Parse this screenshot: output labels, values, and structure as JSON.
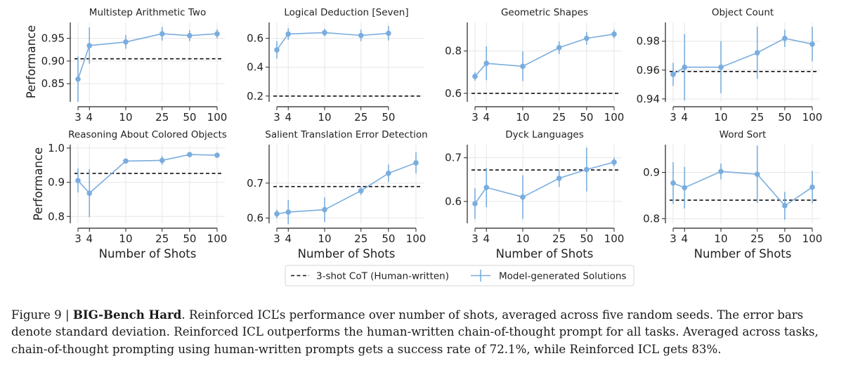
{
  "figure": {
    "y_label": "Performance",
    "x_label": "Number of Shots",
    "legend": {
      "baseline": "3-shot CoT (Human-written)",
      "model": "Model-generated Solutions"
    },
    "colors": {
      "series": "#7aadde",
      "baseline": "#111111",
      "grid": "#e6e6e6",
      "axis": "#222222"
    }
  },
  "caption": {
    "label": "Figure 9 | ",
    "title": "BIG-Bench Hard",
    "text": ". Reinforced ICL’s performance over number of shots, averaged across five random seeds. The error bars denote standard deviation. Reinforced ICL outperforms the human-written chain-of-thought prompt for all tasks. Averaged across tasks, chain-of-thought prompting using human-written prompts gets a success rate of 72.1%, while Reinforced ICL gets 83%."
  },
  "chart_data": [
    {
      "type": "line",
      "title": "Multistep Arithmetic Two",
      "x_scale": "log",
      "x": [
        3,
        4,
        10,
        25,
        50,
        100
      ],
      "xticks": [
        3,
        4,
        10,
        25,
        50,
        100
      ],
      "xtick_labels": [
        "3",
        "4",
        "10",
        "25",
        "50",
        "100"
      ],
      "yticks": [
        0.85,
        0.9,
        0.95
      ],
      "ytick_labels": [
        "0.85",
        "0.90",
        "0.95"
      ],
      "ylim": [
        0.81,
        0.985
      ],
      "series": [
        {
          "name": "Model-generated Solutions",
          "values": [
            0.86,
            0.934,
            0.942,
            0.96,
            0.956,
            0.96
          ],
          "errors": [
            0.05,
            0.04,
            0.015,
            0.015,
            0.012,
            0.01
          ]
        }
      ],
      "baseline": 0.905
    },
    {
      "type": "line",
      "title": "Logical Deduction [Seven]",
      "x_scale": "log",
      "x": [
        3,
        4,
        10,
        25,
        50
      ],
      "xticks": [
        3,
        4,
        10,
        25,
        50
      ],
      "xtick_labels": [
        "3",
        "4",
        "10",
        "25",
        "50"
      ],
      "yticks": [
        0.2,
        0.4,
        0.6
      ],
      "ytick_labels": [
        "0.2",
        "0.4",
        "0.6"
      ],
      "ylim": [
        0.16,
        0.71
      ],
      "series": [
        {
          "name": "Model-generated Solutions",
          "values": [
            0.52,
            0.63,
            0.64,
            0.62,
            0.635
          ],
          "errors": [
            0.06,
            0.04,
            0.025,
            0.04,
            0.05
          ]
        }
      ],
      "baseline": 0.2
    },
    {
      "type": "line",
      "title": "Geometric Shapes",
      "x_scale": "log",
      "x": [
        3,
        4,
        10,
        25,
        50,
        100
      ],
      "xticks": [
        3,
        4,
        10,
        25,
        50,
        100
      ],
      "xtick_labels": [
        "3",
        "4",
        "10",
        "25",
        "50",
        "100"
      ],
      "yticks": [
        0.6,
        0.8
      ],
      "ytick_labels": [
        "0.6",
        "0.8"
      ],
      "ylim": [
        0.56,
        0.935
      ],
      "series": [
        {
          "name": "Model-generated Solutions",
          "values": [
            0.68,
            0.742,
            0.728,
            0.816,
            0.86,
            0.88
          ],
          "errors": [
            0.02,
            0.08,
            0.07,
            0.03,
            0.03,
            0.02
          ]
        }
      ],
      "baseline": 0.6
    },
    {
      "type": "line",
      "title": "Object Count",
      "x_scale": "log",
      "x": [
        3,
        4,
        10,
        25,
        50,
        100
      ],
      "xticks": [
        3,
        4,
        10,
        25,
        50,
        100
      ],
      "xtick_labels": [
        "3",
        "4",
        "10",
        "25",
        "50",
        "100"
      ],
      "yticks": [
        0.94,
        0.96,
        0.98
      ],
      "ytick_labels": [
        "0.94",
        "0.96",
        "0.98"
      ],
      "ylim": [
        0.938,
        0.993
      ],
      "series": [
        {
          "name": "Model-generated Solutions",
          "values": [
            0.957,
            0.962,
            0.962,
            0.972,
            0.982,
            0.978
          ],
          "errors": [
            0.008,
            0.023,
            0.018,
            0.018,
            0.006,
            0.012
          ]
        }
      ],
      "baseline": 0.959
    },
    {
      "type": "line",
      "title": "Reasoning About Colored Objects",
      "x_scale": "log",
      "x": [
        3,
        4,
        10,
        25,
        50,
        100
      ],
      "xticks": [
        3,
        4,
        10,
        25,
        50,
        100
      ],
      "xtick_labels": [
        "3",
        "4",
        "10",
        "25",
        "50",
        "100"
      ],
      "yticks": [
        0.8,
        0.9,
        1.0
      ],
      "ytick_labels": [
        "0.8",
        "0.9",
        "1.0"
      ],
      "ylim": [
        0.78,
        1.01
      ],
      "series": [
        {
          "name": "Model-generated Solutions",
          "values": [
            0.905,
            0.868,
            0.962,
            0.964,
            0.981,
            0.979
          ],
          "errors": [
            0.035,
            0.07,
            0.006,
            0.013,
            0.006,
            0.006
          ]
        }
      ],
      "baseline": 0.926
    },
    {
      "type": "line",
      "title": "Salient Translation Error Detection",
      "x_scale": "log",
      "x": [
        3,
        4,
        10,
        25,
        50,
        100
      ],
      "xticks": [
        3,
        4,
        10,
        25,
        50,
        100
      ],
      "xtick_labels": [
        "3",
        "4",
        "10",
        "25",
        "50",
        "100"
      ],
      "yticks": [
        0.6,
        0.7
      ],
      "ytick_labels": [
        "0.6",
        "0.7"
      ],
      "ylim": [
        0.585,
        0.81
      ],
      "series": [
        {
          "name": "Model-generated Solutions",
          "values": [
            0.612,
            0.617,
            0.624,
            0.678,
            0.728,
            0.758
          ],
          "errors": [
            0.012,
            0.035,
            0.035,
            0.012,
            0.025,
            0.03
          ]
        }
      ],
      "baseline": 0.69
    },
    {
      "type": "line",
      "title": "Dyck Languages",
      "x_scale": "log",
      "x": [
        3,
        4,
        10,
        25,
        50,
        100
      ],
      "xticks": [
        3,
        4,
        10,
        25,
        50,
        100
      ],
      "xtick_labels": [
        "3",
        "4",
        "10",
        "25",
        "50",
        "100"
      ],
      "yticks": [
        0.6,
        0.7
      ],
      "ytick_labels": [
        "0.6",
        "0.7"
      ],
      "ylim": [
        0.55,
        0.73
      ],
      "series": [
        {
          "name": "Model-generated Solutions",
          "values": [
            0.595,
            0.632,
            0.61,
            0.653,
            0.673,
            0.69
          ],
          "errors": [
            0.035,
            0.045,
            0.05,
            0.02,
            0.05,
            0.01
          ]
        }
      ],
      "baseline": 0.672
    },
    {
      "type": "line",
      "title": "Word Sort",
      "x_scale": "log",
      "x": [
        3,
        4,
        10,
        25,
        50,
        100
      ],
      "xticks": [
        3,
        4,
        10,
        25,
        50,
        100
      ],
      "xtick_labels": [
        "3",
        "4",
        "10",
        "25",
        "50",
        "100"
      ],
      "yticks": [
        0.8,
        0.9
      ],
      "ytick_labels": [
        "0.8",
        "0.9"
      ],
      "ylim": [
        0.79,
        0.96
      ],
      "series": [
        {
          "name": "Model-generated Solutions",
          "values": [
            0.877,
            0.867,
            0.902,
            0.896,
            0.828,
            0.868
          ],
          "errors": [
            0.045,
            0.045,
            0.017,
            0.062,
            0.03,
            0.035
          ]
        }
      ],
      "baseline": 0.84
    }
  ]
}
